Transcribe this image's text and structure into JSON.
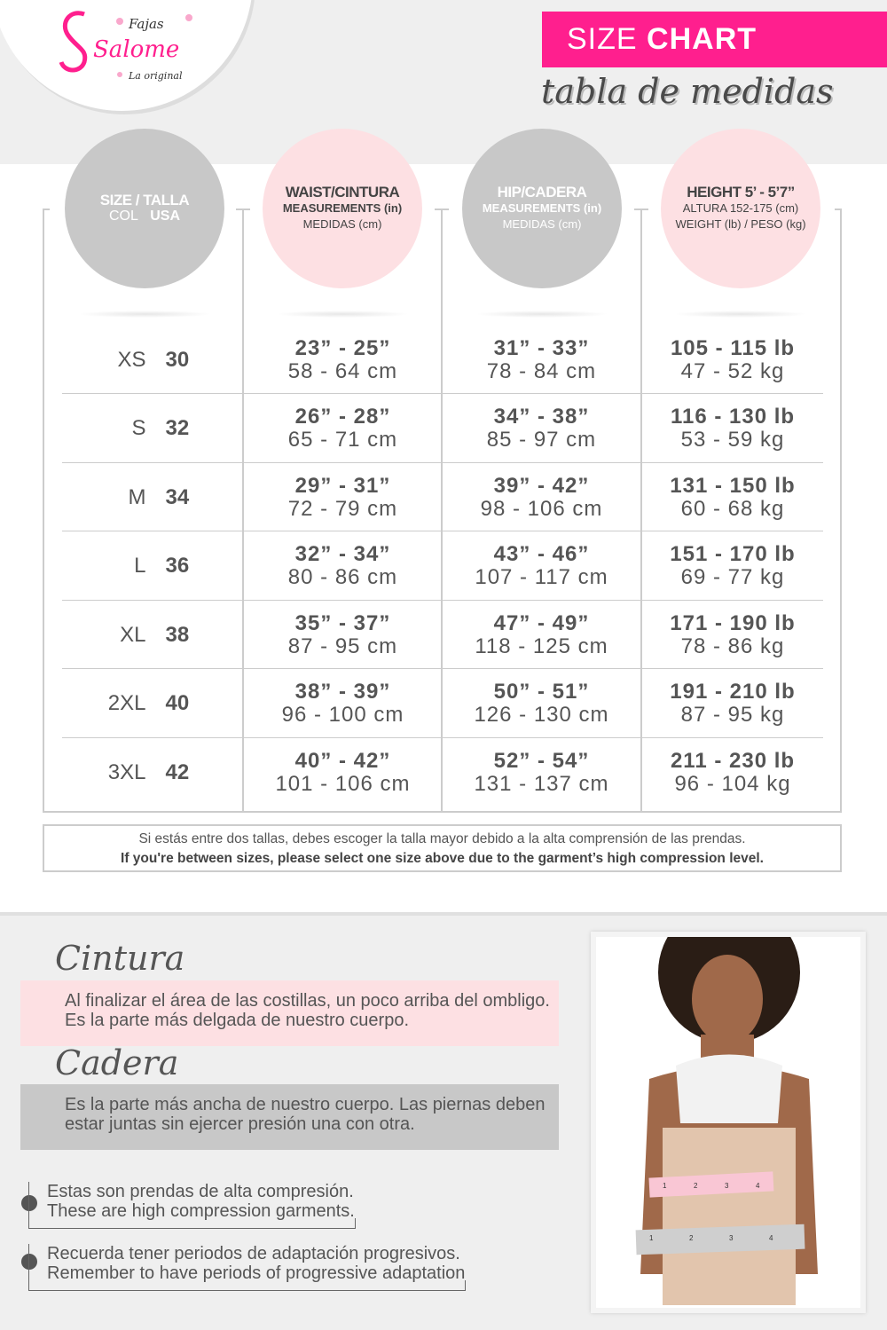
{
  "brand": {
    "name": "Salome",
    "prefix": "Fajas",
    "tagline": "La original",
    "color": "#ff1f8e"
  },
  "header": {
    "title_light": "SIZE",
    "title_bold": "CHART",
    "subtitle": "tabla de medidas"
  },
  "columns": [
    {
      "title": "SIZE / TALLA",
      "line1": "COL",
      "line1b": "USA"
    },
    {
      "title": "WAIST/CINTURA",
      "line1": "MEASUREMENTS (in)",
      "line2": "MEDIDAS (cm)"
    },
    {
      "title": "HIP/CADERA",
      "line1": "MEASUREMENTS (in)",
      "line2": "MEDIDAS (cm)"
    },
    {
      "title": "HEIGHT 5’ - 5’7”",
      "line1": "ALTURA 152-175 (cm)",
      "line2": "WEIGHT (lb) / PESO (kg)"
    }
  ],
  "rows": [
    {
      "col": "XS",
      "usa": "30",
      "waist_in": "23” - 25”",
      "waist_cm": "58 - 64 cm",
      "hip_in": "31” - 33”",
      "hip_cm": "78 - 84 cm",
      "lb": "105 - 115 lb",
      "kg": "47 - 52 kg"
    },
    {
      "col": "S",
      "usa": "32",
      "waist_in": "26” - 28”",
      "waist_cm": "65 - 71 cm",
      "hip_in": "34” - 38”",
      "hip_cm": "85 - 97 cm",
      "lb": "116 - 130 lb",
      "kg": "53 - 59 kg"
    },
    {
      "col": "M",
      "usa": "34",
      "waist_in": "29” - 31”",
      "waist_cm": "72 - 79 cm",
      "hip_in": "39” - 42”",
      "hip_cm": "98 - 106 cm",
      "lb": "131 - 150 lb",
      "kg": "60 - 68 kg"
    },
    {
      "col": "L",
      "usa": "36",
      "waist_in": "32” - 34”",
      "waist_cm": "80 - 86 cm",
      "hip_in": "43” - 46”",
      "hip_cm": "107 - 117 cm",
      "lb": "151 - 170 lb",
      "kg": "69 - 77 kg"
    },
    {
      "col": "XL",
      "usa": "38",
      "waist_in": "35” - 37”",
      "waist_cm": "87 - 95 cm",
      "hip_in": "47” - 49”",
      "hip_cm": "118 - 125 cm",
      "lb": "171 - 190 lb",
      "kg": "78 - 86 kg"
    },
    {
      "col": "2XL",
      "usa": "40",
      "waist_in": "38” - 39”",
      "waist_cm": "96 - 100 cm",
      "hip_in": "50” - 51”",
      "hip_cm": "126 - 130 cm",
      "lb": "191 - 210 lb",
      "kg": "87 - 95 kg"
    },
    {
      "col": "3XL",
      "usa": "42",
      "waist_in": "40” - 42”",
      "waist_cm": "101 - 106 cm",
      "hip_in": "52” - 54”",
      "hip_cm": "131 - 137 cm",
      "lb": "211 - 230 lb",
      "kg": "96 - 104 kg"
    }
  ],
  "note": {
    "es": "Si estás entre dos tallas, debes escoger la talla mayor debido a la alta comprensión de las prendas.",
    "en": "If you're between sizes, please select one size above due to the garment’s high compression level."
  },
  "definitions": [
    {
      "heading": "Cintura",
      "text": "Al finalizar el área de las costillas, un poco arriba del ombligo. Es la parte más delgada de nuestro cuerpo.",
      "color": "#fde0e3"
    },
    {
      "heading": "Cadera",
      "text": "Es la parte más ancha de nuestro cuerpo. Las piernas deben estar juntas sin ejercer presión una con otra.",
      "color": "#c8c8c8"
    }
  ],
  "bullets": [
    {
      "es": "Estas son prendas de alta compresión.",
      "en": "These are high compression garments."
    },
    {
      "es": "Recuerda tener periodos de adaptación progresivos.",
      "en": "Remember to have periods of progressive adaptation"
    }
  ],
  "tape_marks": [
    "1",
    "2",
    "3",
    "4"
  ]
}
